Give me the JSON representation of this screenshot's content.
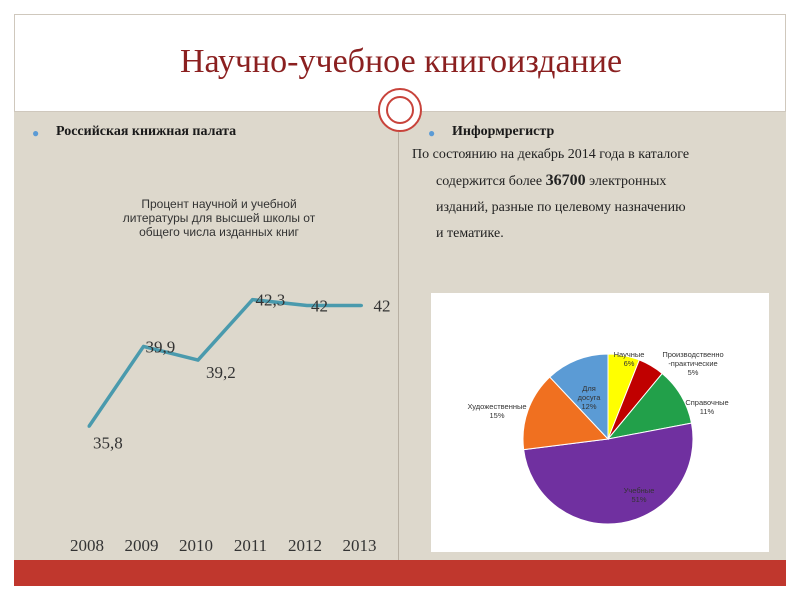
{
  "title": "Научно-учебное книгоиздание",
  "left": {
    "heading": "Российская книжная палата"
  },
  "right": {
    "heading": "Информрегистр",
    "line1": "По состоянию на декабрь 2014 года в каталоге",
    "line2_pre": "содержится более ",
    "line2_num": "36700",
    "line2_post": " электронных",
    "line3": "изданий, разные по целевому назначению",
    "line4": "и тематике."
  },
  "colors": {
    "accent_red": "#c0372d",
    "title_color": "#8b2020",
    "line_color": "#4a9aad",
    "bullet": "#5b9bd5"
  },
  "chart_data": [
    {
      "type": "line",
      "title": "Процент научной и учебной литературы для высшей школы от общего числа изданных книг",
      "x": [
        "2008",
        "2009",
        "2010",
        "2011",
        "2012",
        "2013"
      ],
      "series": [
        {
          "values": [
            35.8,
            39.9,
            39.2,
            42.3,
            42,
            42
          ]
        }
      ],
      "data_labels": [
        "35,8",
        "39,9",
        "39,2",
        "42,3",
        "42",
        "42"
      ],
      "grid": false
    },
    {
      "type": "pie",
      "slices": [
        {
          "label": "Научные",
          "value": 6,
          "pct": "6%",
          "color": "#ffff00"
        },
        {
          "label": "Производственно -практические",
          "value": 5,
          "pct": "5%",
          "color": "#c00000"
        },
        {
          "label": "Справочные",
          "value": 11,
          "pct": "11%",
          "color": "#22a04a"
        },
        {
          "label": "Учебные",
          "value": 51,
          "pct": "51%",
          "color": "#7030a0"
        },
        {
          "label": "Художественные",
          "value": 15,
          "pct": "15%",
          "color": "#f07020"
        },
        {
          "label": "Для досуга",
          "value": 12,
          "pct": "12%",
          "color": "#5b9bd5"
        }
      ]
    }
  ]
}
